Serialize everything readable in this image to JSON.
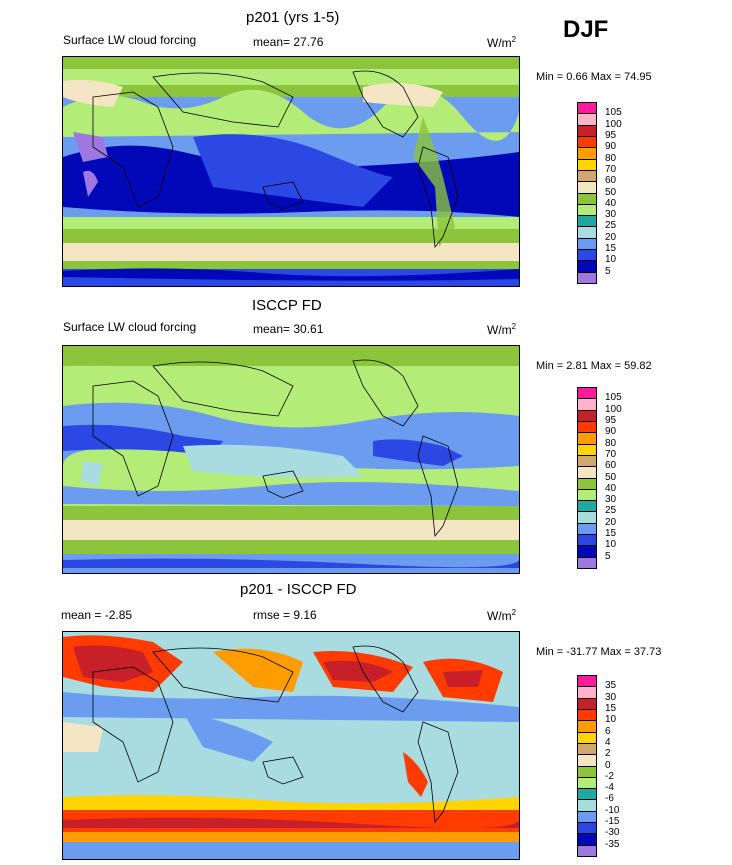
{
  "season": "DJF",
  "units_label": "W/m",
  "units_sup": "2",
  "panels": [
    {
      "title": "p201 (yrs 1-5)",
      "field": "Surface LW cloud forcing",
      "stat_label": "mean=",
      "stat_value": "27.76",
      "min_label": "Min =",
      "min_value": "0.66",
      "max_label": "Max =",
      "max_value": "74.95"
    },
    {
      "title": "ISCCP FD",
      "field": "Surface LW cloud forcing",
      "stat_label": "mean=",
      "stat_value": "30.61",
      "min_label": "Min =",
      "min_value": "2.81",
      "max_label": "Max =",
      "max_value": "59.82"
    },
    {
      "title": "p201 - ISCCP FD",
      "mean_label": "mean =",
      "mean_value": "-2.85",
      "stat_label": "rmse =",
      "stat_value": "9.16",
      "min_label": "Min =",
      "min_value": "-31.77",
      "max_label": "Max =",
      "max_value": "37.73"
    }
  ],
  "chart_data": [
    {
      "type": "heatmap",
      "title": "p201 (yrs 1-5)",
      "variable": "Surface LW cloud forcing",
      "units": "W/m2",
      "mean": 27.76,
      "min": 0.66,
      "max": 74.95,
      "levels": [
        105,
        100,
        95,
        90,
        80,
        70,
        60,
        50,
        40,
        30,
        25,
        20,
        15,
        10,
        5
      ],
      "colors": [
        "#ff1c9c",
        "#ffb3c8",
        "#c8202a",
        "#ff3b00",
        "#ff9c00",
        "#ffd400",
        "#d2a66c",
        "#f4e6c4",
        "#8cc43c",
        "#b4ec78",
        "#20a8a0",
        "#a8dce0",
        "#6c9cf0",
        "#2c48e4",
        "#0008b8",
        "#9c78e0"
      ]
    },
    {
      "type": "heatmap",
      "title": "ISCCP FD",
      "variable": "Surface LW cloud forcing",
      "units": "W/m2",
      "mean": 30.61,
      "min": 2.81,
      "max": 59.82,
      "levels": [
        105,
        100,
        95,
        90,
        80,
        70,
        60,
        50,
        40,
        30,
        25,
        20,
        15,
        10,
        5
      ],
      "colors": [
        "#ff1c9c",
        "#ffb3c8",
        "#c8202a",
        "#ff3b00",
        "#ff9c00",
        "#ffd400",
        "#d2a66c",
        "#f4e6c4",
        "#8cc43c",
        "#b4ec78",
        "#20a8a0",
        "#a8dce0",
        "#6c9cf0",
        "#2c48e4",
        "#0008b8",
        "#9c78e0"
      ]
    },
    {
      "type": "heatmap",
      "title": "p201 - ISCCP FD",
      "units": "W/m2",
      "mean": -2.85,
      "rmse": 9.16,
      "min": -31.77,
      "max": 37.73,
      "levels": [
        35,
        30,
        15,
        10,
        6,
        4,
        2,
        0,
        -2,
        -4,
        -6,
        -10,
        -15,
        -30,
        -35
      ],
      "colors": [
        "#ff1c9c",
        "#ffb3c8",
        "#c8202a",
        "#ff3b00",
        "#ff9c00",
        "#ffd400",
        "#d2a66c",
        "#f4e6c4",
        "#8cc43c",
        "#b4ec78",
        "#20a8a0",
        "#a8dce0",
        "#6c9cf0",
        "#2c48e4",
        "#0008b8",
        "#9c78e0"
      ]
    }
  ]
}
